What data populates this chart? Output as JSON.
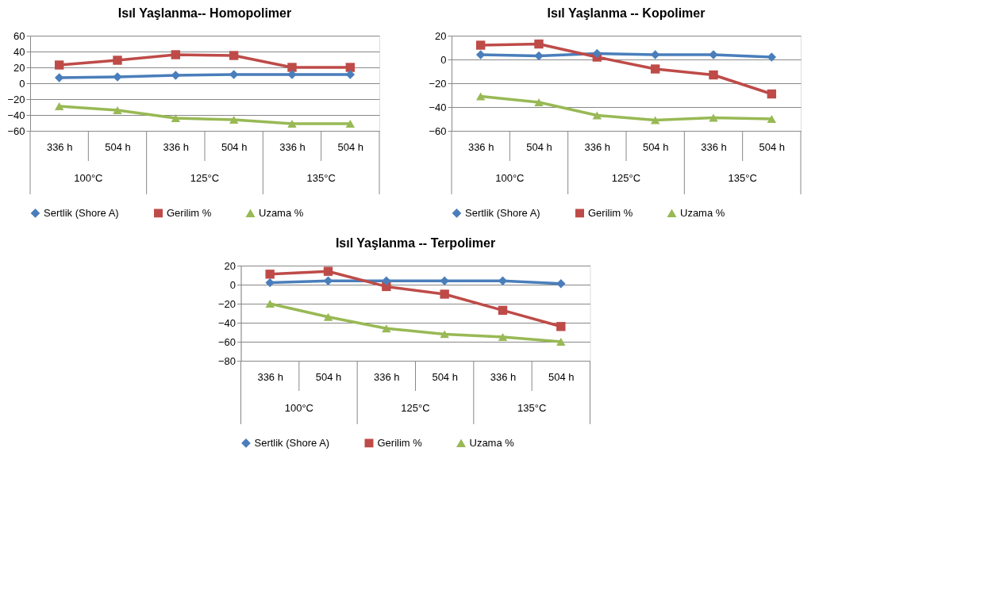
{
  "chart_data": [
    {
      "type": "line",
      "title": "Isıl Yaşlanma-- Homopolimer",
      "categories": [
        "336 h",
        "504 h",
        "336 h",
        "504 h",
        "336 h",
        "504 h"
      ],
      "annotations": [
        "100°C",
        "125°C",
        "135°C"
      ],
      "ylim": [
        -60,
        60
      ],
      "yticks": [
        -60,
        -40,
        -20,
        0,
        20,
        40,
        60
      ],
      "grid": "y",
      "legend": "bottom",
      "series": [
        {
          "name": "Sertlik (Shore A)",
          "color": "#4a7ebb",
          "marker": "diamond",
          "values": [
            7,
            8,
            10,
            11,
            11,
            11
          ]
        },
        {
          "name": "Gerilim %",
          "color": "#be4b48",
          "marker": "square",
          "values": [
            23,
            29,
            36,
            35,
            20,
            20
          ]
        },
        {
          "name": "Uzama %",
          "color": "#98b954",
          "marker": "triangle",
          "values": [
            -29,
            -34,
            -44,
            -46,
            -51,
            -51
          ]
        }
      ]
    },
    {
      "type": "line",
      "title": "Isıl Yaşlanma -- Kopolimer",
      "categories": [
        "336 h",
        "504 h",
        "336 h",
        "504 h",
        "336 h",
        "504 h"
      ],
      "annotations": [
        "100°C",
        "125°C",
        "135°C"
      ],
      "ylim": [
        -60,
        20
      ],
      "yticks": [
        -60,
        -40,
        -20,
        0,
        20
      ],
      "grid": "y",
      "legend": "bottom",
      "series": [
        {
          "name": "Sertlik (Shore A)",
          "color": "#4a7ebb",
          "marker": "diamond",
          "values": [
            4,
            3,
            5,
            4,
            4,
            2
          ]
        },
        {
          "name": "Gerilim %",
          "color": "#be4b48",
          "marker": "square",
          "values": [
            12,
            13,
            2,
            -8,
            -13,
            -29
          ]
        },
        {
          "name": "Uzama %",
          "color": "#98b954",
          "marker": "triangle",
          "values": [
            -31,
            -36,
            -47,
            -51,
            -49,
            -50
          ]
        }
      ]
    },
    {
      "type": "line",
      "title": "Isıl Yaşlanma -- Terpolimer",
      "categories": [
        "336 h",
        "504 h",
        "336 h",
        "504 h",
        "336 h",
        "504 h"
      ],
      "annotations": [
        "100°C",
        "125°C",
        "135°C"
      ],
      "ylim": [
        -80,
        20
      ],
      "yticks": [
        -80,
        -60,
        -40,
        -20,
        0,
        20
      ],
      "grid": "y",
      "legend": "bottom",
      "series": [
        {
          "name": "Sertlik (Shore A)",
          "color": "#4a7ebb",
          "marker": "diamond",
          "values": [
            2,
            4,
            4,
            4,
            4,
            1
          ]
        },
        {
          "name": "Gerilim %",
          "color": "#be4b48",
          "marker": "square",
          "values": [
            11,
            14,
            -2,
            -10,
            -27,
            -44
          ]
        },
        {
          "name": "Uzama %",
          "color": "#98b954",
          "marker": "triangle",
          "values": [
            -20,
            -34,
            -46,
            -52,
            -55,
            -60
          ]
        }
      ]
    }
  ]
}
